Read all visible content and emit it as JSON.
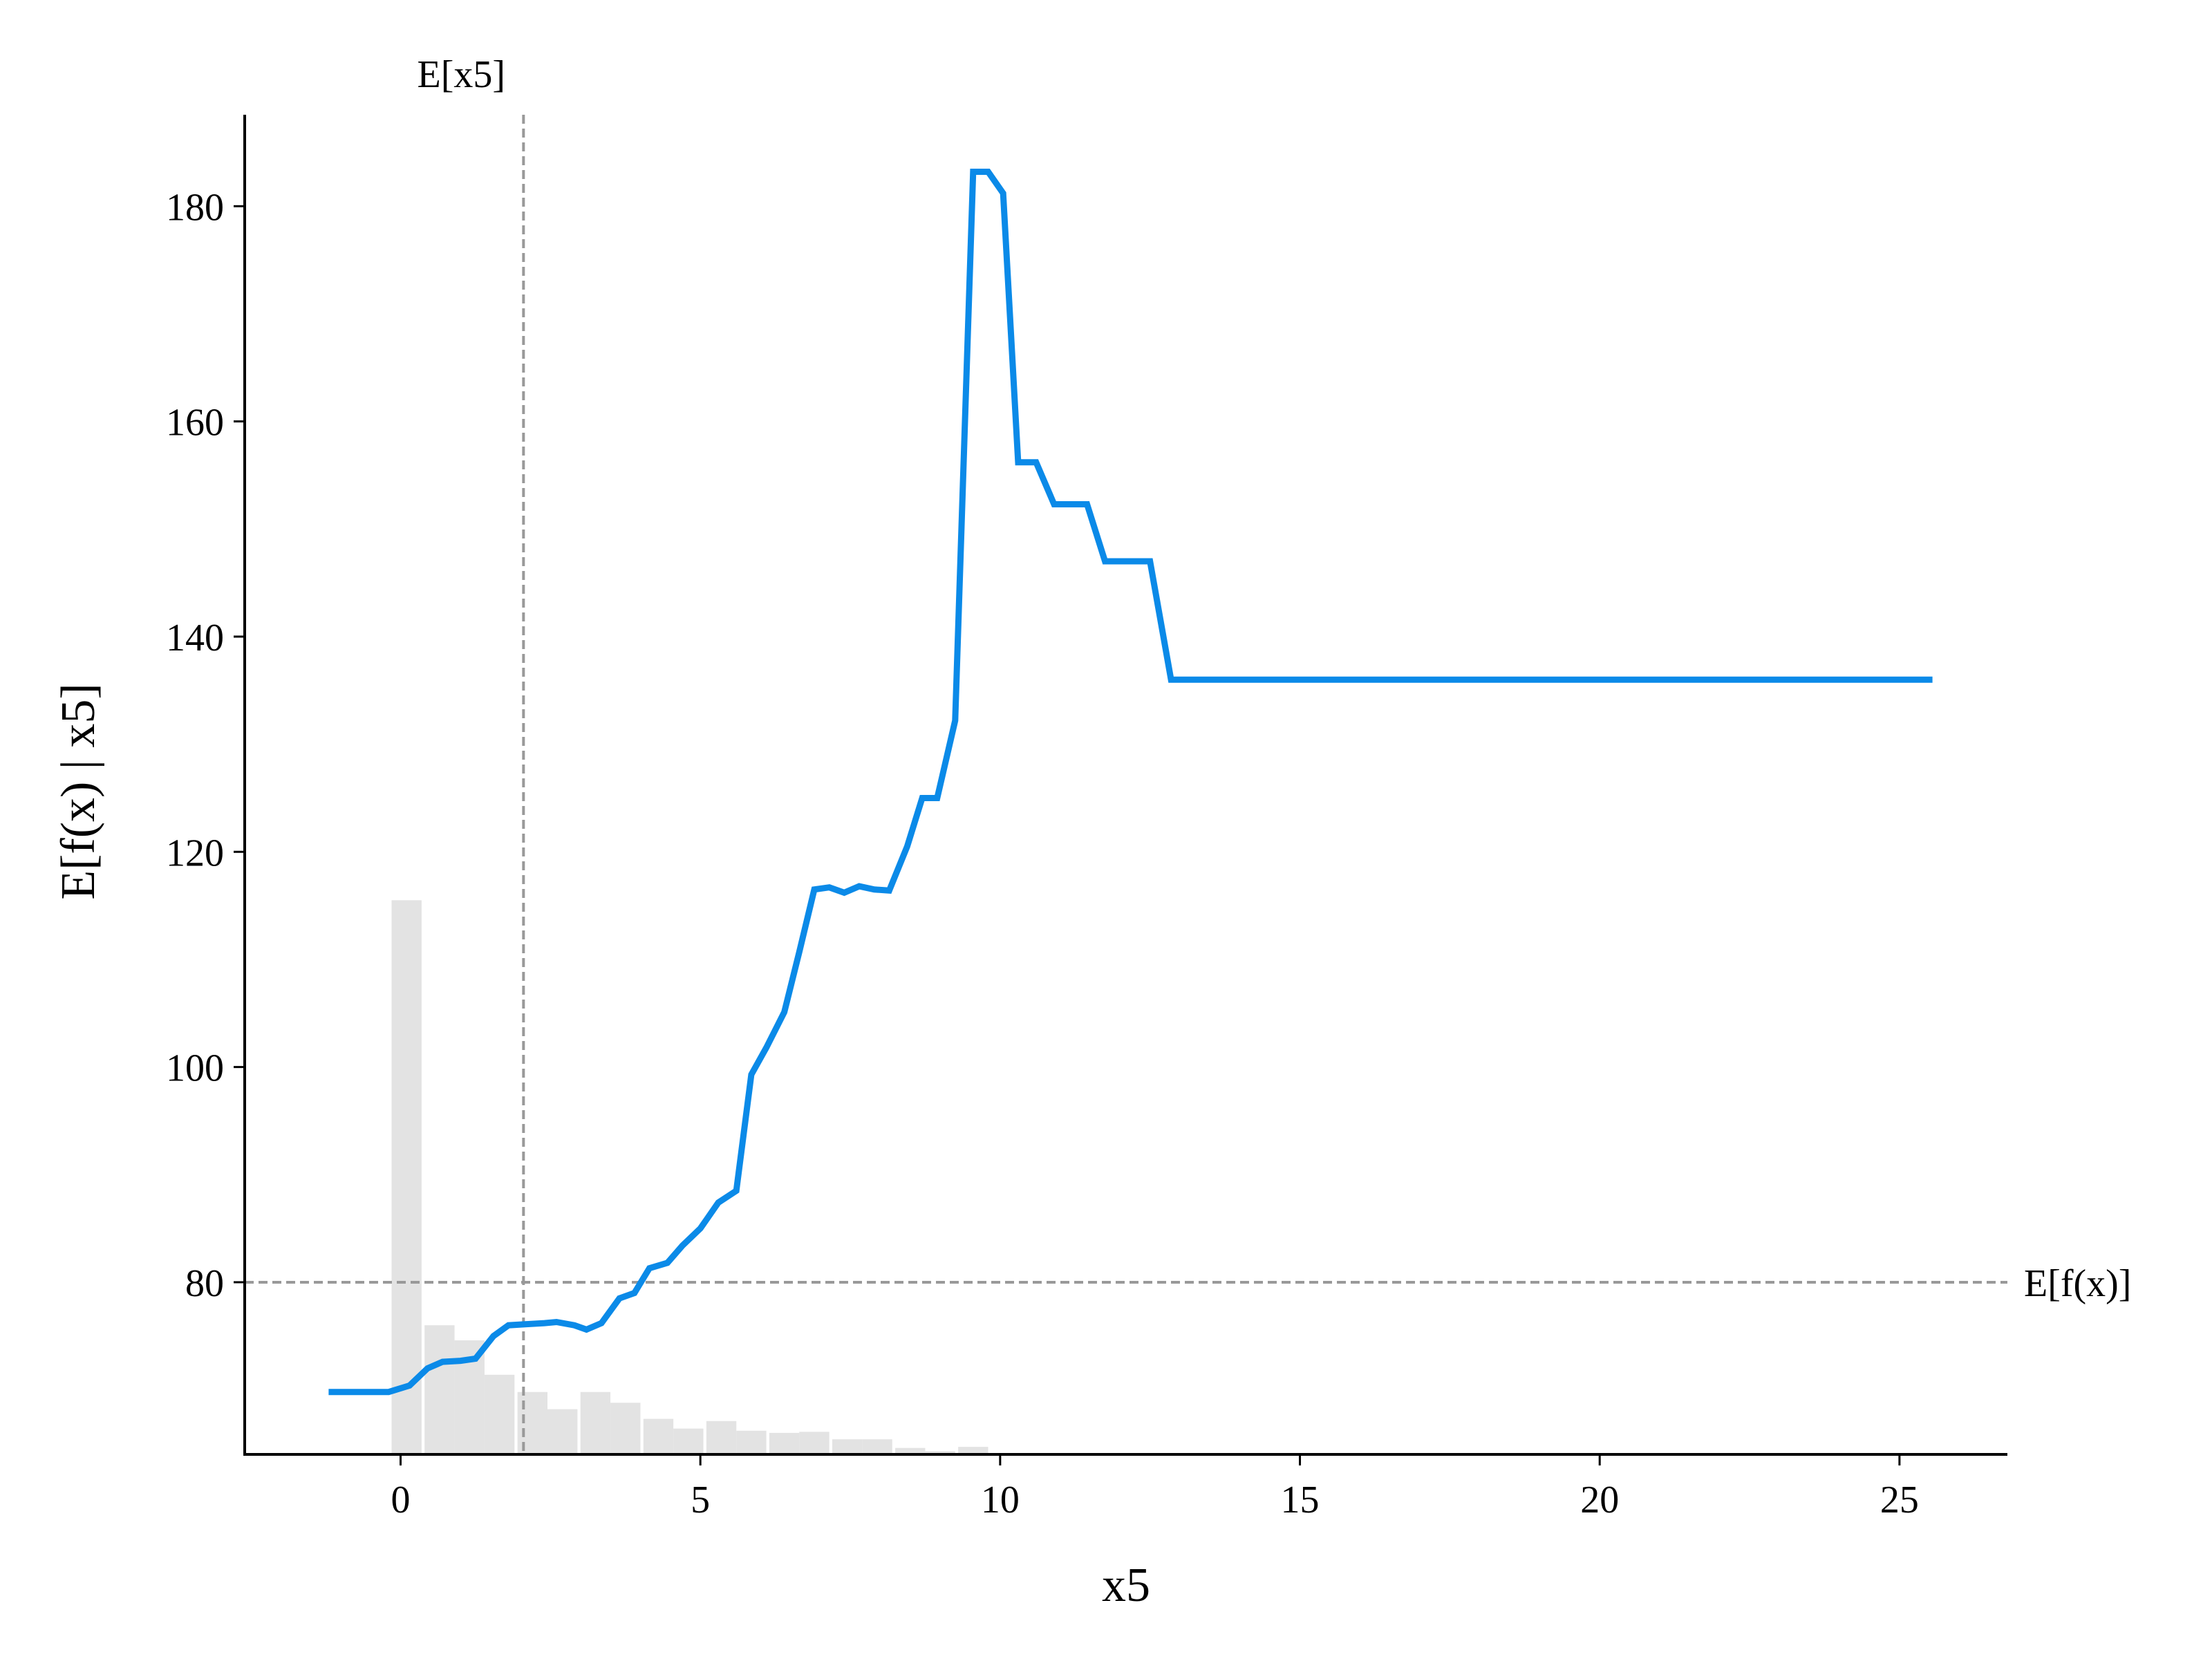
{
  "chart_data": {
    "type": "line",
    "title": "",
    "xlabel": "x5",
    "ylabel": "E[f(x) | x5]",
    "xlim": [
      -2.6,
      26.8
    ],
    "ylim": [
      64,
      188.5
    ],
    "xticks": [
      0,
      5,
      10,
      15,
      20,
      25
    ],
    "yticks": [
      80,
      100,
      120,
      140,
      160,
      180
    ],
    "xtick_labels": [
      "0",
      "5",
      "10",
      "15",
      "20",
      "25"
    ],
    "ytick_labels": [
      "80",
      "100",
      "120",
      "140",
      "160",
      "180"
    ],
    "grid": false,
    "colors": {
      "line": "#0b8ae8",
      "histogram": "#e3e3e3",
      "reference": "#999999",
      "axis": "#000000"
    },
    "reference_lines": [
      {
        "orientation": "vertical",
        "value": 2.05,
        "label": "E[x5]"
      },
      {
        "orientation": "horizontal",
        "value": 80,
        "label": "E[f(x)]"
      }
    ],
    "histogram": {
      "bin_width": 0.5,
      "baseline": 64,
      "bins": [
        {
          "start": -0.15,
          "top": 115.5
        },
        {
          "start": 0.4,
          "top": 76.0
        },
        {
          "start": 0.9,
          "top": 74.6
        },
        {
          "start": 1.4,
          "top": 71.4
        },
        {
          "start": 1.95,
          "top": 69.8
        },
        {
          "start": 2.45,
          "top": 68.2
        },
        {
          "start": 3.0,
          "top": 69.8
        },
        {
          "start": 3.5,
          "top": 68.8
        },
        {
          "start": 4.05,
          "top": 67.3
        },
        {
          "start": 4.55,
          "top": 66.4
        },
        {
          "start": 5.1,
          "top": 67.1
        },
        {
          "start": 5.6,
          "top": 66.2
        },
        {
          "start": 6.15,
          "top": 66.0
        },
        {
          "start": 6.65,
          "top": 66.1
        },
        {
          "start": 7.2,
          "top": 65.4
        },
        {
          "start": 7.7,
          "top": 65.4
        },
        {
          "start": 8.25,
          "top": 64.6
        },
        {
          "start": 8.75,
          "top": 64.3
        },
        {
          "start": 9.3,
          "top": 64.7
        }
      ]
    },
    "series": [
      {
        "name": "E[f(x) | x5]",
        "points": [
          [
            -1.2,
            69.8
          ],
          [
            -0.2,
            69.8
          ],
          [
            0.15,
            70.4
          ],
          [
            0.45,
            72.0
          ],
          [
            0.7,
            72.6
          ],
          [
            1.0,
            72.7
          ],
          [
            1.25,
            72.9
          ],
          [
            1.55,
            75.0
          ],
          [
            1.8,
            76.0
          ],
          [
            2.1,
            76.1
          ],
          [
            2.4,
            76.2
          ],
          [
            2.6,
            76.3
          ],
          [
            2.9,
            76.0
          ],
          [
            3.1,
            75.6
          ],
          [
            3.35,
            76.2
          ],
          [
            3.65,
            78.5
          ],
          [
            3.9,
            79.0
          ],
          [
            4.15,
            81.3
          ],
          [
            4.45,
            81.8
          ],
          [
            4.7,
            83.4
          ],
          [
            5.0,
            85.0
          ],
          [
            5.3,
            87.4
          ],
          [
            5.6,
            88.5
          ],
          [
            5.85,
            99.3
          ],
          [
            6.1,
            101.8
          ],
          [
            6.4,
            105.1
          ],
          [
            6.65,
            110.7
          ],
          [
            6.9,
            116.5
          ],
          [
            7.15,
            116.7
          ],
          [
            7.4,
            116.2
          ],
          [
            7.65,
            116.8
          ],
          [
            7.9,
            116.5
          ],
          [
            8.15,
            116.4
          ],
          [
            8.45,
            120.5
          ],
          [
            8.7,
            125.0
          ],
          [
            8.95,
            125.0
          ],
          [
            9.25,
            132.2
          ],
          [
            9.55,
            183.2
          ],
          [
            9.8,
            183.2
          ],
          [
            10.05,
            181.2
          ],
          [
            10.3,
            156.2
          ],
          [
            10.6,
            156.2
          ],
          [
            10.9,
            152.3
          ],
          [
            11.45,
            152.3
          ],
          [
            11.75,
            147.0
          ],
          [
            12.5,
            147.0
          ],
          [
            12.85,
            136.0
          ],
          [
            25.55,
            136.0
          ]
        ]
      }
    ]
  }
}
